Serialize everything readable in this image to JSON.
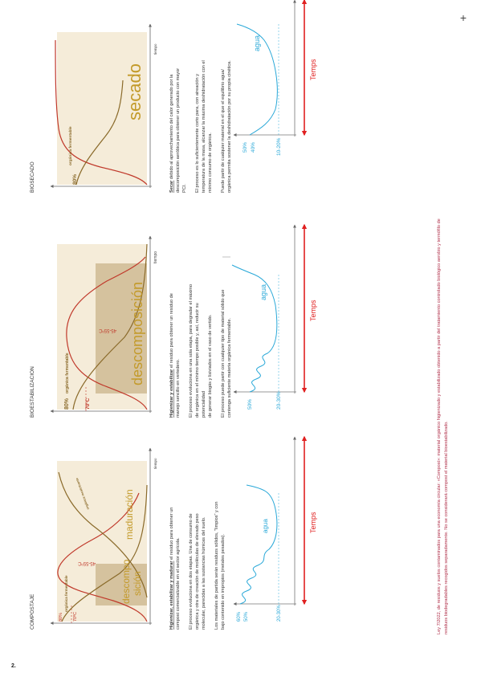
{
  "page_number": "2.",
  "corner_mark": "+",
  "footer_note": {
    "line1": "Ley 7/2022, de residuos y suelos contaminados para una economía circular: «Compost»: material orgánico higienizado y estabilizado obtenido a partir del tratamiento controlado biológico aerobio y termófilo de",
    "line2": "residuos biodegradables recogidos separadamente. No se considerará compost el material bioestabilizado."
  },
  "colors": {
    "brown": "#8a6a2a",
    "red": "#c0392b",
    "cyan": "#29a8d8",
    "tan": "#c9b48a",
    "pink": "#b0304a",
    "shade": "#f5ecd9"
  },
  "sections": {
    "compostaje": {
      "title": "COMPOSTAJE",
      "chart": {
        "label_80": "80%",
        "label_70c": "70ºC",
        "label_organica": "orgánica fermentable",
        "label_recalcitrante": "orgánica recalcitrante",
        "label_temp_range": "45-55ºC",
        "label_descompo": "descompo",
        "label_sicion": "sición",
        "label_maduracion": "maduración",
        "label_tiempo": "tiempo"
      },
      "humidity": {
        "label_60": "60%",
        "label_50": "50%",
        "label_2030": "20-30%",
        "label_agua": "agua",
        "label_temps": "Temps"
      },
      "text": {
        "p1_bold": "Higienizar, estabilizar y madurar",
        "p1_rest": " el residuo para obtener un",
        "p1_l2": "compost comercializable en el sector agrícola.",
        "p2_l1": "El proceso evoluciona en dos etapas. Una de consumo de",
        "p2_l2": "orgánica y otra de creación de moléculas de elevado peso",
        "p2_l3": "molecular, parecidas a las sustancias húmicas del suelo.",
        "p3_l1": "Los materiales de partida serán residuos sólidos, \"limpios\" y con",
        "p3_l2": "bajo contenido en impropios (metales pesados)."
      }
    },
    "bioestabilizacion": {
      "title": "BIOESTABILIZACION",
      "chart": {
        "label_80": "80%",
        "label_70c": "70ºC",
        "label_organica": "orgánica fermentable",
        "label_temp_range": "45-55ºC",
        "label_descomposicion": "descomposición",
        "label_tiempo": "tiempo"
      },
      "humidity": {
        "label_50": "50%",
        "label_2030": "20-30%",
        "label_agua": "agua",
        "label_temps": "Temps"
      },
      "text": {
        "p1_bold": "Higienizar y estabilizar",
        "p1_rest": " el residuo para obtener un residuo de",
        "p1_l2": "manejo sencillo en vertedero.",
        "p2_l1": "El proceso evoluciona en una sola etapa, para degradar el máximo",
        "p2_l2": "de orgánica en el mínimo tiempo posible y, así, reducir su",
        "p2_l3": "potencialidad",
        "p2_l4": "de generar biogás y lixiviados en el vaso de vertido.",
        "p3_l1": "El proceso puede partir con cualquier tipo de material sólido que",
        "p3_l2": "contenga suficiente materia orgánica fermentable."
      }
    },
    "biosecado": {
      "title": "BIOSECADO",
      "chart": {
        "label_80": "80%",
        "label_organica": "orgánica fermentable",
        "label_secado": "secado",
        "label_tiempo": "tiempo"
      },
      "humidity": {
        "label_50": "50%",
        "label_40": "40%",
        "label_1020": "10-20%",
        "label_agua": "agua",
        "label_temps": "Temps"
      },
      "text": {
        "p1_bold": "Secar",
        "p1_rest": " debido al aprovechamiento del calor generado por la",
        "p1_l2": "descomposición aeróbica para obtener un producto con mayor",
        "p1_l3": "PCI.",
        "p2_l1": "El proceso es lo suficientemente corto para, con aireación y",
        "p2_l2": "temperatura de la masa, alcanzar la máxima deshidratación con el",
        "p2_l3": "mínimo consumo de orgánica.",
        "p3_l1": "Puede partir de cualquier material en el que el equilibrio agua/",
        "p3_l2": "orgánica permita sostener la deshidratación por su propia cinética."
      }
    }
  }
}
